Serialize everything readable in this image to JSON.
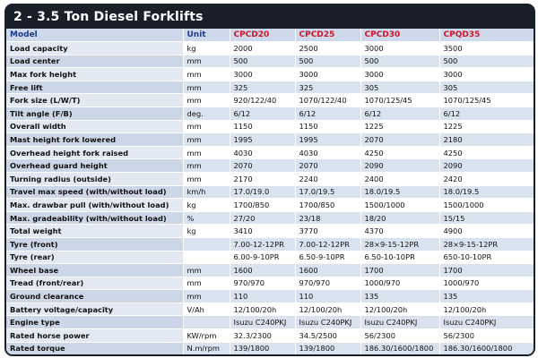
{
  "title": "2 - 3.5 Ton Diesel Forklifts",
  "columns": {
    "model": "Model",
    "unit": "Unit",
    "models": [
      "CPCD20",
      "CPCD25",
      "CPCD30",
      "CPQD35"
    ]
  },
  "rows": [
    {
      "label": "Load capacity",
      "unit": "kg",
      "values": [
        "2000",
        "2500",
        "3000",
        "3500"
      ]
    },
    {
      "label": "Load center",
      "unit": "mm",
      "values": [
        "500",
        "500",
        "500",
        "500"
      ]
    },
    {
      "label": "Max fork height",
      "unit": "mm",
      "values": [
        "3000",
        "3000",
        "3000",
        "3000"
      ]
    },
    {
      "label": "Free lift",
      "unit": "mm",
      "values": [
        "325",
        "325",
        "305",
        "305"
      ]
    },
    {
      "label": "Fork size (L/W/T)",
      "unit": "mm",
      "values": [
        "920/122/40",
        "1070/122/40",
        "1070/125/45",
        "1070/125/45"
      ]
    },
    {
      "label": "Tilt angle (F/B)",
      "unit": "deg.",
      "values": [
        "6/12",
        "6/12",
        "6/12",
        "6/12"
      ]
    },
    {
      "label": "Overall width",
      "unit": "mm",
      "values": [
        "1150",
        "1150",
        "1225",
        "1225"
      ]
    },
    {
      "label": "Mast height fork lowered",
      "unit": "mm",
      "values": [
        "1995",
        "1995",
        "2070",
        "2180"
      ]
    },
    {
      "label": "Overhead height fork raised",
      "unit": "mm",
      "values": [
        "4030",
        "4030",
        "4250",
        "4250"
      ]
    },
    {
      "label": "Overhead guard height",
      "unit": "mm",
      "values": [
        "2070",
        "2070",
        "2090",
        "2090"
      ]
    },
    {
      "label": "Turning radius (outside)",
      "unit": "mm",
      "values": [
        "2170",
        "2240",
        "2400",
        "2420"
      ]
    },
    {
      "label": "Travel max speed (with/without load)",
      "unit": "km/h",
      "values": [
        "17.0/19.0",
        "17.0/19.5",
        "18.0/19.5",
        "18.0/19.5"
      ]
    },
    {
      "label": "Max. drawbar pull (with/without load)",
      "unit": "kg",
      "values": [
        "1700/850",
        "1700/850",
        "1500/1000",
        "1500/1000"
      ]
    },
    {
      "label": "Max. gradeability (with/without load)",
      "unit": "%",
      "values": [
        "27/20",
        "23/18",
        "18/20",
        "15/15"
      ]
    },
    {
      "label": "Total weight",
      "unit": "kg",
      "values": [
        "3410",
        "3770",
        "4370",
        "4900"
      ]
    },
    {
      "label": "Tyre (front)",
      "unit": "",
      "values": [
        "7.00-12-12PR",
        "7.00-12-12PR",
        "28×9-15-12PR",
        "28×9-15-12PR"
      ]
    },
    {
      "label": "Tyre (rear)",
      "unit": "",
      "values": [
        "6.00-9-10PR",
        "6.50-9-10PR",
        "6.50-10-10PR",
        "650-10-10PR"
      ]
    },
    {
      "label": "Wheel base",
      "unit": "mm",
      "values": [
        "1600",
        "1600",
        "1700",
        "1700"
      ]
    },
    {
      "label": "Tread (front/rear)",
      "unit": "mm",
      "values": [
        "970/970",
        "970/970",
        "1000/970",
        "1000/970"
      ]
    },
    {
      "label": "Ground clearance",
      "unit": "mm",
      "values": [
        "110",
        "110",
        "135",
        "135"
      ]
    },
    {
      "label": "Battery voltage/capacity",
      "unit": "V/Ah",
      "values": [
        "12/100/20h",
        "12/100/20h",
        "12/100/20h",
        "12/100/20h"
      ]
    },
    {
      "label": "Engine type",
      "unit": "",
      "values": [
        "Isuzu C240PKJ",
        "Isuzu C240PKJ",
        "Isuzu C240PKJ",
        "Isuzu C240PKJ"
      ]
    },
    {
      "label": "Rated horse power",
      "unit": "KW/rpm",
      "values": [
        "32.3/2300",
        "34.5/2500",
        "56/2300",
        "56/2300"
      ]
    },
    {
      "label": "Rated torque",
      "unit": "N.m/rpm",
      "values": [
        "139/1800",
        "139/1800",
        "186.30/1600/1800",
        "186.30/1600/1800"
      ]
    }
  ]
}
